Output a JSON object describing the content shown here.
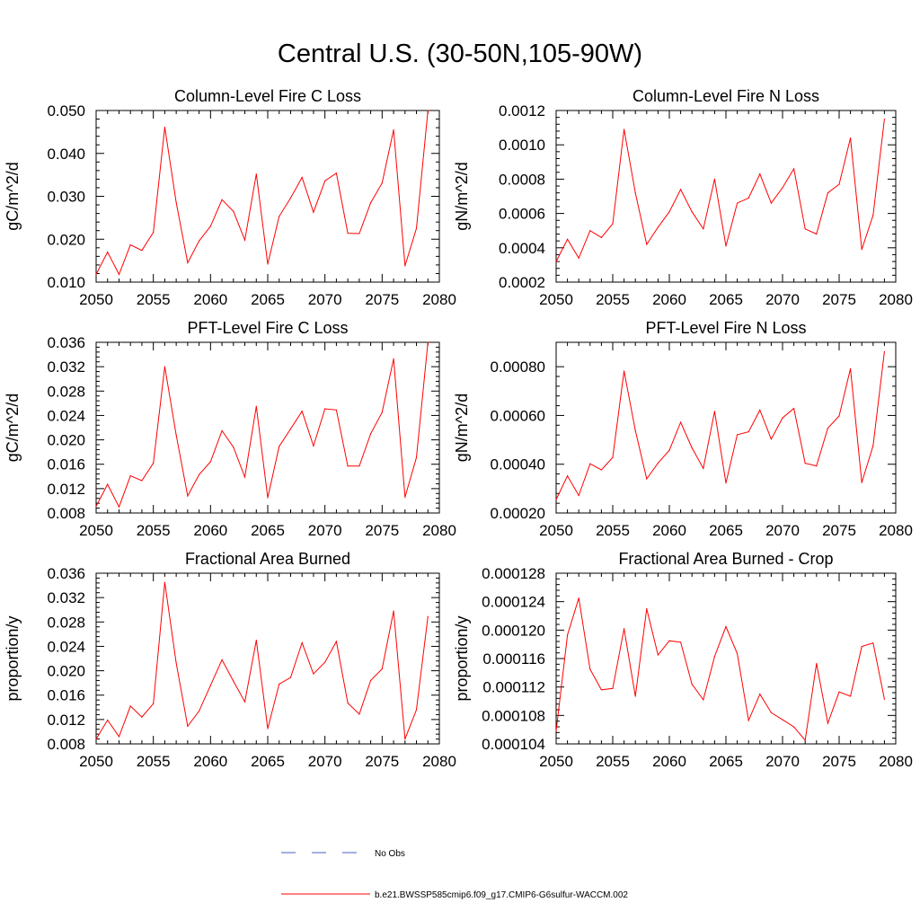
{
  "title": "Central U.S. (30-50N,105-90W)",
  "colors": {
    "model_line": "#ff0000",
    "obs_line": "#4a5fc1",
    "axis": "#000000"
  },
  "legend": {
    "obs_label": "No Obs",
    "model_label": "b.e21.BWSSP585cmip6.f09_g17.CMIP6-G6sulfur-WACCM.002"
  },
  "chart_data": [
    {
      "type": "line",
      "title": "Column-Level Fire C Loss",
      "ylabel": "gC/m^2/d",
      "xlim": [
        2050,
        2080
      ],
      "ylim": [
        0.01,
        0.05
      ],
      "xticks": [
        "2050",
        "2055",
        "2060",
        "2065",
        "2070",
        "2075",
        "2080"
      ],
      "yticks": [
        "0.010",
        "0.020",
        "0.030",
        "0.040",
        "0.050"
      ],
      "x": [
        2050,
        2051,
        2052,
        2053,
        2054,
        2055,
        2056,
        2057,
        2058,
        2059,
        2060,
        2061,
        2062,
        2063,
        2064,
        2065,
        2066,
        2067,
        2068,
        2069,
        2070,
        2071,
        2072,
        2073,
        2074,
        2075,
        2076,
        2077,
        2078,
        2079
      ],
      "series": [
        {
          "values": [
            0.0118,
            0.017,
            0.0118,
            0.0187,
            0.0174,
            0.0216,
            0.0461,
            0.0286,
            0.0145,
            0.0196,
            0.023,
            0.0292,
            0.0265,
            0.0198,
            0.0352,
            0.0142,
            0.0253,
            0.0296,
            0.0344,
            0.0263,
            0.0336,
            0.0354,
            0.0214,
            0.0213,
            0.0285,
            0.0331,
            0.0455,
            0.0138,
            0.0225,
            0.05
          ]
        }
      ]
    },
    {
      "type": "line",
      "title": "Column-Level Fire N Loss",
      "ylabel": "gN/m^2/d",
      "xlim": [
        2050,
        2080
      ],
      "ylim": [
        0.0002,
        0.0012
      ],
      "xticks": [
        "2050",
        "2055",
        "2060",
        "2065",
        "2070",
        "2075",
        "2080"
      ],
      "yticks": [
        "0.0002",
        "0.0004",
        "0.0006",
        "0.0008",
        "0.0010",
        "0.0012"
      ],
      "x": [
        2050,
        2051,
        2052,
        2053,
        2054,
        2055,
        2056,
        2057,
        2058,
        2059,
        2060,
        2061,
        2062,
        2063,
        2064,
        2065,
        2066,
        2067,
        2068,
        2069,
        2070,
        2071,
        2072,
        2073,
        2074,
        2075,
        2076,
        2077,
        2078,
        2079
      ],
      "series": [
        {
          "values": [
            0.00032,
            0.00045,
            0.00034,
            0.0005,
            0.00046,
            0.00054,
            0.00109,
            0.00072,
            0.00042,
            0.00052,
            0.00061,
            0.00074,
            0.00061,
            0.00051,
            0.0008,
            0.00041,
            0.00066,
            0.00069,
            0.00083,
            0.00066,
            0.00075,
            0.00086,
            0.00051,
            0.00048,
            0.00072,
            0.00077,
            0.00104,
            0.00039,
            0.00059,
            0.00115
          ]
        }
      ]
    },
    {
      "type": "line",
      "title": "PFT-Level Fire C Loss",
      "ylabel": "gC/m^2/d",
      "xlim": [
        2050,
        2080
      ],
      "ylim": [
        0.008,
        0.036
      ],
      "xticks": [
        "2050",
        "2055",
        "2060",
        "2065",
        "2070",
        "2075",
        "2080"
      ],
      "yticks": [
        "0.008",
        "0.012",
        "0.016",
        "0.020",
        "0.024",
        "0.028",
        "0.032",
        "0.036"
      ],
      "x": [
        2050,
        2051,
        2052,
        2053,
        2054,
        2055,
        2056,
        2057,
        2058,
        2059,
        2060,
        2061,
        2062,
        2063,
        2064,
        2065,
        2066,
        2067,
        2068,
        2069,
        2070,
        2071,
        2072,
        2073,
        2074,
        2075,
        2076,
        2077,
        2078,
        2079
      ],
      "series": [
        {
          "values": [
            0.0091,
            0.0127,
            0.009,
            0.0141,
            0.0133,
            0.0162,
            0.032,
            0.0208,
            0.0108,
            0.0143,
            0.0164,
            0.0215,
            0.0188,
            0.0139,
            0.0255,
            0.0105,
            0.0189,
            0.0218,
            0.0247,
            0.019,
            0.0251,
            0.0249,
            0.0157,
            0.0157,
            0.021,
            0.0245,
            0.0333,
            0.0106,
            0.0171,
            0.036
          ]
        }
      ]
    },
    {
      "type": "line",
      "title": "PFT-Level Fire N Loss",
      "ylabel": "gN/m^2/d",
      "xlim": [
        2050,
        2080
      ],
      "ylim": [
        0.0002,
        0.0009
      ],
      "xticks": [
        "2050",
        "2055",
        "2060",
        "2065",
        "2070",
        "2075",
        "2080"
      ],
      "yticks": [
        "0.00020",
        "0.00040",
        "0.00060",
        "0.00080"
      ],
      "x": [
        2050,
        2051,
        2052,
        2053,
        2054,
        2055,
        2056,
        2057,
        2058,
        2059,
        2060,
        2061,
        2062,
        2063,
        2064,
        2065,
        2066,
        2067,
        2068,
        2069,
        2070,
        2071,
        2072,
        2073,
        2074,
        2075,
        2076,
        2077,
        2078,
        2079
      ],
      "series": [
        {
          "values": [
            0.000255,
            0.000352,
            0.000272,
            0.000402,
            0.000377,
            0.000428,
            0.000782,
            0.000538,
            0.00034,
            0.000405,
            0.000457,
            0.000572,
            0.000467,
            0.000383,
            0.000617,
            0.000323,
            0.000521,
            0.000533,
            0.000622,
            0.000503,
            0.00059,
            0.000629,
            0.000404,
            0.000393,
            0.000548,
            0.000598,
            0.000792,
            0.000325,
            0.000476,
            0.000862
          ]
        }
      ]
    },
    {
      "type": "line",
      "title": "Fractional Area Burned",
      "ylabel": "proportion/y",
      "xlim": [
        2050,
        2080
      ],
      "ylim": [
        0.008,
        0.036
      ],
      "xticks": [
        "2050",
        "2055",
        "2060",
        "2065",
        "2070",
        "2075",
        "2080"
      ],
      "yticks": [
        "0.008",
        "0.012",
        "0.016",
        "0.020",
        "0.024",
        "0.028",
        "0.032",
        "0.036"
      ],
      "x": [
        2050,
        2051,
        2052,
        2053,
        2054,
        2055,
        2056,
        2057,
        2058,
        2059,
        2060,
        2061,
        2062,
        2063,
        2064,
        2065,
        2066,
        2067,
        2068,
        2069,
        2070,
        2071,
        2072,
        2073,
        2074,
        2075,
        2076,
        2077,
        2078,
        2079
      ],
      "series": [
        {
          "values": [
            0.0088,
            0.0119,
            0.0092,
            0.0142,
            0.0124,
            0.0146,
            0.0345,
            0.0213,
            0.0109,
            0.0134,
            0.0176,
            0.0218,
            0.0183,
            0.0149,
            0.025,
            0.0105,
            0.0178,
            0.0189,
            0.0246,
            0.0195,
            0.0214,
            0.0248,
            0.0147,
            0.0129,
            0.0184,
            0.0203,
            0.0298,
            0.0088,
            0.0136,
            0.0289
          ]
        }
      ]
    },
    {
      "type": "line",
      "title": "Fractional Area Burned - Crop",
      "ylabel": "proportion/y",
      "xlim": [
        2050,
        2080
      ],
      "ylim": [
        0.000104,
        0.000128
      ],
      "xticks": [
        "2050",
        "2055",
        "2060",
        "2065",
        "2070",
        "2075",
        "2080"
      ],
      "yticks": [
        "0.000104",
        "0.000108",
        "0.000112",
        "0.000116",
        "0.000120",
        "0.000124",
        "0.000128"
      ],
      "x": [
        2050,
        2051,
        2052,
        2053,
        2054,
        2055,
        2056,
        2057,
        2058,
        2059,
        2060,
        2061,
        2062,
        2063,
        2064,
        2065,
        2066,
        2067,
        2068,
        2069,
        2070,
        2071,
        2072,
        2073,
        2074,
        2075,
        2076,
        2077,
        2078,
        2079
      ],
      "series": [
        {
          "values": [
            0.0001058,
            0.0001193,
            0.0001245,
            0.0001145,
            0.0001116,
            0.0001118,
            0.0001202,
            0.0001107,
            0.000123,
            0.0001165,
            0.0001185,
            0.0001183,
            0.0001124,
            0.0001102,
            0.0001163,
            0.0001205,
            0.0001167,
            0.0001073,
            0.000111,
            0.0001084,
            0.0001074,
            0.0001064,
            0.0001045,
            0.0001153,
            0.0001069,
            0.0001113,
            0.0001107,
            0.0001177,
            0.0001182,
            0.0001103
          ]
        }
      ]
    }
  ]
}
